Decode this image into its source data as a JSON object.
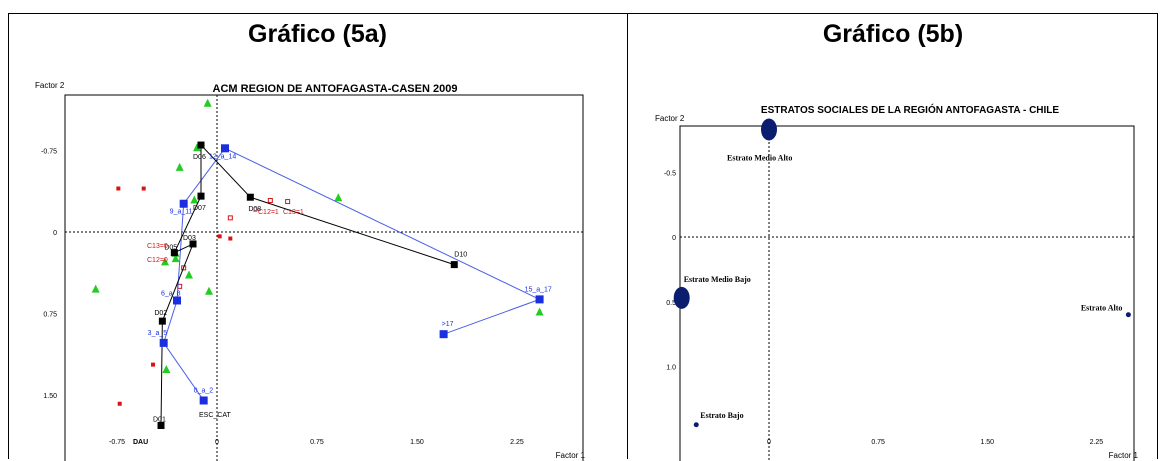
{
  "headers": {
    "left": "Gráfico (5a)",
    "right": "Gráfico (5b)"
  },
  "chart_data": [
    {
      "type": "scatter",
      "title": "ACM REGION DE ANTOFAGASTA-CASEN 2009",
      "xlabel": "Factor 1",
      "ylabel": "Factor 2",
      "x_ticks": [
        "-0.75",
        "0",
        "0.75",
        "1.50",
        "2.25"
      ],
      "y_ticks": [
        "-0.75",
        "0",
        "0.75",
        "1.50"
      ],
      "xlim": [
        -1.0,
        2.6
      ],
      "ylim": [
        -1.25,
        1.8
      ],
      "colors": {
        "blue": "#1a2fe0",
        "black": "#000000",
        "red": "#dd1111",
        "green": "#22cc22",
        "pathBlue": "#4a5ee8"
      },
      "escolaridad": [
        {
          "label": "0_a_2",
          "x": -0.1,
          "y": 1.55
        },
        {
          "label": "3_a_5",
          "x": -0.4,
          "y": 1.02
        },
        {
          "label": "6_a_8",
          "x": -0.3,
          "y": 0.63
        },
        {
          "label": "9_a_11",
          "x": -0.25,
          "y": -0.26
        },
        {
          "label": "12_a_14",
          "x": 0.06,
          "y": -0.77
        },
        {
          "label": "15_a_17",
          "x": 2.42,
          "y": 0.62
        },
        {
          "label": ">17",
          "x": 1.7,
          "y": 0.94
        }
      ],
      "deciles": [
        {
          "label": "D01",
          "x": -0.42,
          "y": 1.78
        },
        {
          "label": "D02",
          "x": -0.41,
          "y": 0.82
        },
        {
          "label": "D03",
          "x": -0.18,
          "y": 0.11
        },
        {
          "label": "D05",
          "x": -0.32,
          "y": 0.19
        },
        {
          "label": "D06",
          "x": -0.12,
          "y": -0.8
        },
        {
          "label": "D07",
          "x": -0.12,
          "y": -0.33
        },
        {
          "label": "D08",
          "x": 0.25,
          "y": -0.32
        },
        {
          "label": "D10",
          "x": 1.78,
          "y": 0.3
        }
      ],
      "red_labels": [
        "C12=1",
        "C13=1",
        "C13=0",
        "C12=0",
        "D"
      ],
      "marker_legend": [
        "ESC_CAT",
        "DAU"
      ]
    },
    {
      "type": "scatter",
      "title": "ESTRATOS SOCIALES DE LA REGIÓN ANTOFAGASTA - CHILE",
      "xlabel": "Factor 1",
      "ylabel": "Factor 2",
      "x_ticks": [
        "0",
        "0.75",
        "1.50",
        "2.25"
      ],
      "y_ticks": [
        "-0.5",
        "0",
        "0.5",
        "1.0"
      ],
      "color": "#0b1d6e",
      "points": [
        {
          "label": "Estrato Medio Alto",
          "x": 0.0,
          "y": -0.83,
          "size": "large"
        },
        {
          "label": "Estrato Medio Bajo",
          "x": -0.6,
          "y": 0.47,
          "size": "large"
        },
        {
          "label": "Estrato Alto",
          "x": 2.47,
          "y": 0.6,
          "size": "small"
        },
        {
          "label": "Estrato Bajo",
          "x": -0.5,
          "y": 1.45,
          "size": "small"
        }
      ]
    }
  ]
}
